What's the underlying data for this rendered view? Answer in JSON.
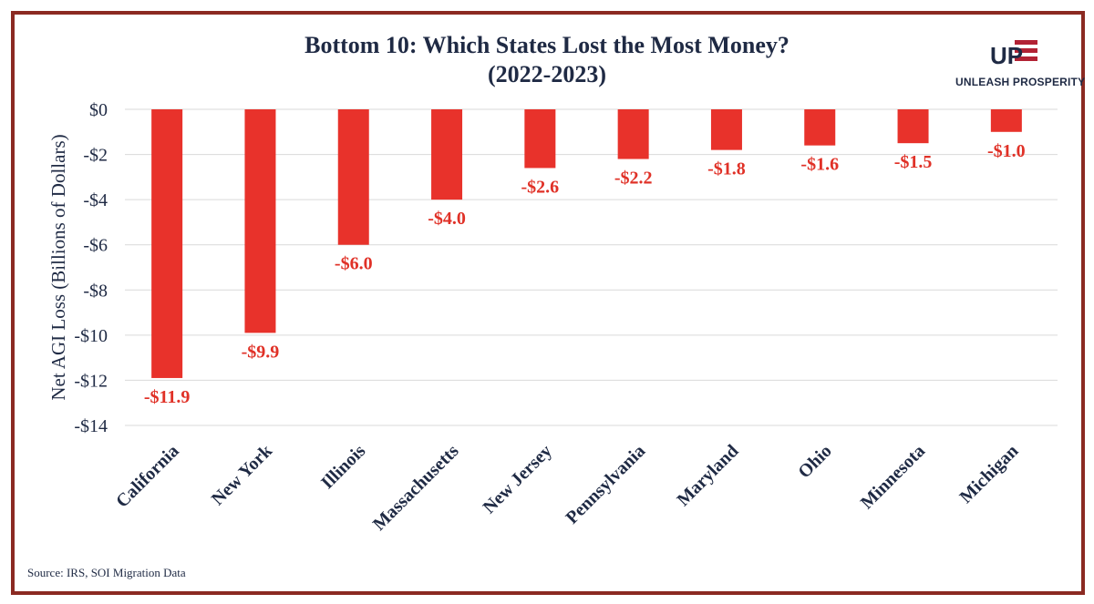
{
  "logo": {
    "mark": "UP",
    "name": "UNLEASH PROSPERITY"
  },
  "source": "Source: IRS, SOI Migration Data",
  "colors": {
    "bar": "#E8322B",
    "label": "#E03127",
    "text": "#1f2a44",
    "border": "#8B2A22",
    "grid": "#d9d9d9",
    "logo_red": "#B22234"
  },
  "chart_data": {
    "type": "bar",
    "title": "Bottom 10: Which States Lost the Most Money?",
    "subtitle": "(2022-2023)",
    "ylabel": "Net AGI Loss (Billions of Dollars)",
    "xlabel": "",
    "ylim": [
      -14,
      0
    ],
    "yticks": [
      0,
      -2,
      -4,
      -6,
      -8,
      -10,
      -12,
      -14
    ],
    "ytick_labels": [
      "$0",
      "-$2",
      "-$4",
      "-$6",
      "-$8",
      "-$10",
      "-$12",
      "-$14"
    ],
    "categories": [
      "California",
      "New York",
      "Illinois",
      "Massachusetts",
      "New Jersey",
      "Pennsylvania",
      "Maryland",
      "Ohio",
      "Minnesota",
      "Michigan"
    ],
    "values": [
      -11.9,
      -9.9,
      -6.0,
      -4.0,
      -2.6,
      -2.2,
      -1.8,
      -1.6,
      -1.5,
      -1.0
    ],
    "data_labels": [
      "-$11.9",
      "-$9.9",
      "-$6.0",
      "-$4.0",
      "-$2.6",
      "-$2.2",
      "-$1.8",
      "-$1.6",
      "-$1.5",
      "-$1.0"
    ],
    "grid": true,
    "legend": "none"
  }
}
